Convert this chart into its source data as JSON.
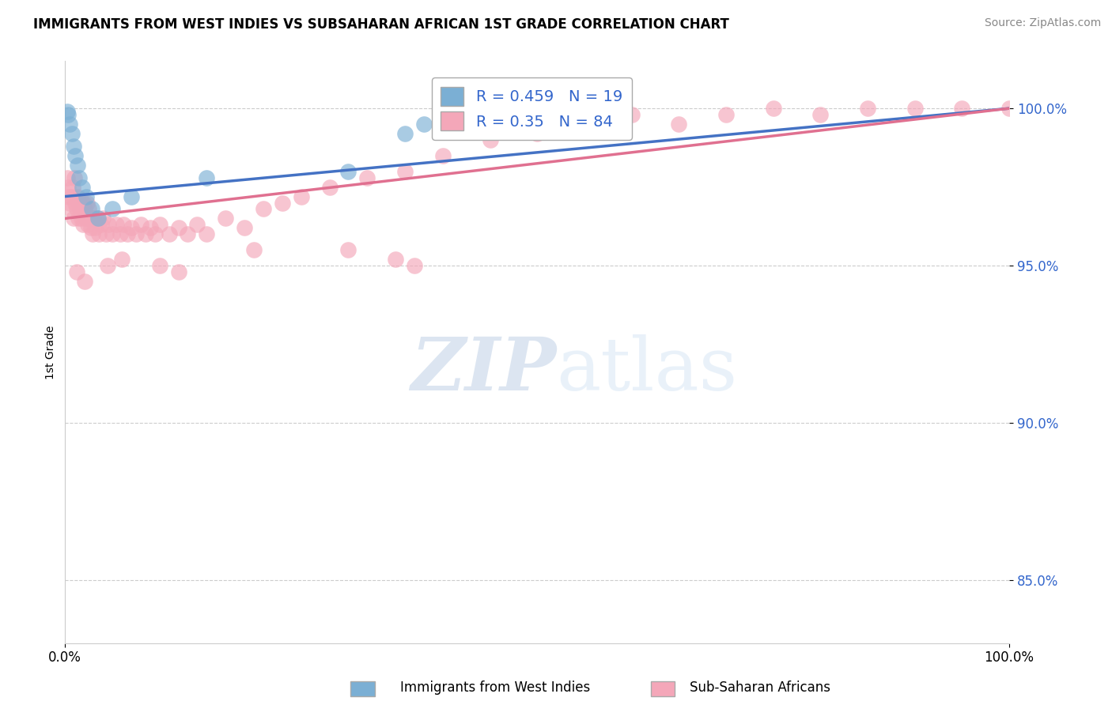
{
  "title": "IMMIGRANTS FROM WEST INDIES VS SUBSAHARAN AFRICAN 1ST GRADE CORRELATION CHART",
  "source": "Source: ZipAtlas.com",
  "ylabel": "1st Grade",
  "xlim": [
    0,
    100
  ],
  "ylim": [
    83,
    101.5
  ],
  "yticks": [
    85,
    90,
    95,
    100
  ],
  "ytick_labels": [
    "85.0%",
    "90.0%",
    "95.0%",
    "100.0%"
  ],
  "xticks": [
    0,
    100
  ],
  "xtick_labels": [
    "0.0%",
    "100.0%"
  ],
  "legend_labels": [
    "Immigrants from West Indies",
    "Sub-Saharan Africans"
  ],
  "R_blue": 0.459,
  "N_blue": 19,
  "R_pink": 0.35,
  "N_pink": 84,
  "blue_color": "#7BAFD4",
  "pink_color": "#F4A7B9",
  "blue_line_color": "#4472C4",
  "pink_line_color": "#E07090",
  "watermark_color": "#D0DCF0",
  "blue_x": [
    0.3,
    0.5,
    0.7,
    0.9,
    1.1,
    1.3,
    1.5,
    1.8,
    2.2,
    2.8,
    3.5,
    5.0,
    7.0,
    15.0,
    30.0,
    36.0,
    38.0,
    55.0,
    0.2
  ],
  "blue_y": [
    99.8,
    99.5,
    99.2,
    98.8,
    98.5,
    98.2,
    97.8,
    97.5,
    97.2,
    96.8,
    96.5,
    96.8,
    97.2,
    97.8,
    98.0,
    99.2,
    99.5,
    100.0,
    99.9
  ],
  "pink_x": [
    0.2,
    0.3,
    0.4,
    0.5,
    0.6,
    0.7,
    0.8,
    0.9,
    1.0,
    1.1,
    1.2,
    1.3,
    1.4,
    1.5,
    1.6,
    1.7,
    1.8,
    1.9,
    2.0,
    2.1,
    2.2,
    2.3,
    2.4,
    2.5,
    2.6,
    2.7,
    2.8,
    2.9,
    3.0,
    3.2,
    3.4,
    3.6,
    3.8,
    4.0,
    4.3,
    4.6,
    5.0,
    5.4,
    5.8,
    6.2,
    6.6,
    7.0,
    7.5,
    8.0,
    8.5,
    9.0,
    9.5,
    10.0,
    11.0,
    12.0,
    13.0,
    14.0,
    15.0,
    17.0,
    19.0,
    21.0,
    23.0,
    25.0,
    28.0,
    32.0,
    36.0,
    40.0,
    45.0,
    50.0,
    55.0,
    60.0,
    65.0,
    70.0,
    75.0,
    80.0,
    85.0,
    90.0,
    95.0,
    100.0,
    30.0,
    35.0,
    37.0,
    20.0,
    10.0,
    12.0,
    6.0,
    4.5,
    2.1,
    1.2
  ],
  "pink_y": [
    97.8,
    97.5,
    97.2,
    97.0,
    96.8,
    97.2,
    97.5,
    96.5,
    97.8,
    97.0,
    96.8,
    97.2,
    96.5,
    97.0,
    96.8,
    96.5,
    97.0,
    96.3,
    97.0,
    96.8,
    96.5,
    97.0,
    96.3,
    96.8,
    96.5,
    96.2,
    96.5,
    96.0,
    96.5,
    96.2,
    96.5,
    96.0,
    96.3,
    96.5,
    96.0,
    96.3,
    96.0,
    96.3,
    96.0,
    96.3,
    96.0,
    96.2,
    96.0,
    96.3,
    96.0,
    96.2,
    96.0,
    96.3,
    96.0,
    96.2,
    96.0,
    96.3,
    96.0,
    96.5,
    96.2,
    96.8,
    97.0,
    97.2,
    97.5,
    97.8,
    98.0,
    98.5,
    99.0,
    99.2,
    99.5,
    99.8,
    99.5,
    99.8,
    100.0,
    99.8,
    100.0,
    100.0,
    100.0,
    100.0,
    95.5,
    95.2,
    95.0,
    95.5,
    95.0,
    94.8,
    95.2,
    95.0,
    94.5,
    94.8
  ]
}
